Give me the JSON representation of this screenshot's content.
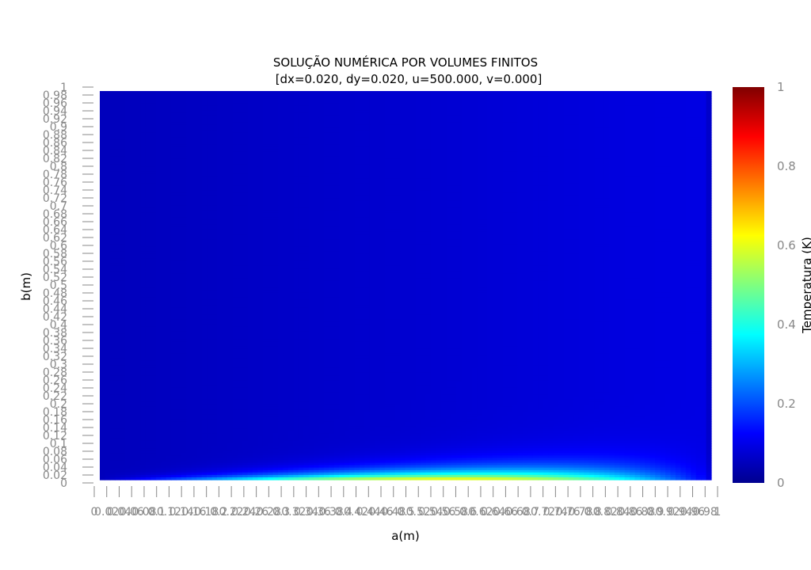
{
  "chart_data": {
    "type": "heatmap",
    "title": "SOLUÇÃO NUMÉRICA POR VOLUMES FINITOS",
    "subtitle": "[dx=0.020, dy=0.020, u=500.000, v=0.000]",
    "xlabel": "a(m)",
    "ylabel": "b(m)",
    "xlim": [
      0,
      1
    ],
    "ylim": [
      0,
      1
    ],
    "x_ticks": [
      "0",
      "0.02",
      "0.04",
      "0.06",
      "0.08",
      "0.1",
      "0.12",
      "0.14",
      "0.16",
      "0.18",
      "0.2",
      "0.22",
      "0.24",
      "0.26",
      "0.28",
      "0.3",
      "0.32",
      "0.34",
      "0.36",
      "0.38",
      "0.4",
      "0.42",
      "0.44",
      "0.46",
      "0.48",
      "0.5",
      "0.52",
      "0.54",
      "0.56",
      "0.58",
      "0.6",
      "0.62",
      "0.64",
      "0.66",
      "0.68",
      "0.7",
      "0.72",
      "0.74",
      "0.76",
      "0.78",
      "0.8",
      "0.82",
      "0.84",
      "0.86",
      "0.88",
      "0.9",
      "0.92",
      "0.94",
      "0.96",
      "0.98",
      "1"
    ],
    "y_ticks": [
      "0",
      "0.02",
      "0.04",
      "0.06",
      "0.08",
      "0.1",
      "0.12",
      "0.14",
      "0.16",
      "0.18",
      "0.2",
      "0.22",
      "0.24",
      "0.26",
      "0.28",
      "0.3",
      "0.32",
      "0.34",
      "0.36",
      "0.38",
      "0.4",
      "0.42",
      "0.44",
      "0.46",
      "0.48",
      "0.5",
      "0.52",
      "0.54",
      "0.56",
      "0.58",
      "0.6",
      "0.62",
      "0.64",
      "0.66",
      "0.68",
      "0.7",
      "0.72",
      "0.74",
      "0.76",
      "0.78",
      "0.8",
      "0.82",
      "0.84",
      "0.86",
      "0.88",
      "0.9",
      "0.92",
      "0.94",
      "0.96",
      "0.98",
      "1"
    ],
    "colorbar": {
      "label": "Temperatura (K)",
      "range": [
        0,
        1
      ],
      "ticks": [
        "0",
        "0.2",
        "0.4",
        "0.6",
        "0.8",
        "1"
      ],
      "colorscale": "jet"
    },
    "field_description_values": {
      "max_temperature_near_bottom": 0.75,
      "background_temperature": 0.05
    }
  }
}
